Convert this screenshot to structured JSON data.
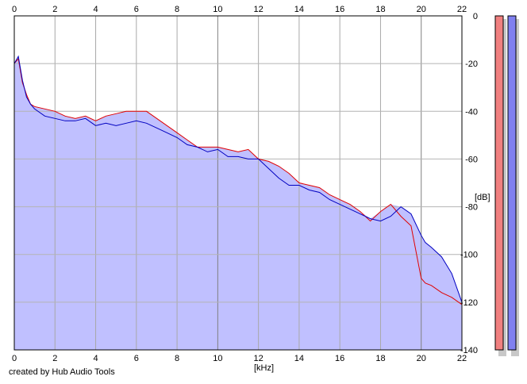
{
  "credit": "created by Hub Audio Tools",
  "chart_data": {
    "type": "area",
    "xlabel": "[kHz]",
    "ylabel": "[dB]",
    "xlim": [
      0,
      22
    ],
    "ylim": [
      -140,
      0
    ],
    "x_ticks": [
      0,
      2,
      4,
      6,
      8,
      10,
      12,
      14,
      16,
      18,
      20,
      22
    ],
    "y_ticks": [
      0,
      -20,
      -40,
      -60,
      -80,
      -100,
      -120,
      -140
    ],
    "grid": true,
    "fill_color": "#c0c0ff",
    "series": [
      {
        "channel": "left",
        "color": "#e00000",
        "x": [
          0,
          0.2,
          0.4,
          0.6,
          0.8,
          1,
          1.5,
          2,
          2.5,
          3,
          3.5,
          4,
          4.5,
          5,
          5.5,
          6,
          6.5,
          7,
          7.5,
          8,
          8.5,
          9,
          9.5,
          10,
          10.5,
          11,
          11.5,
          12,
          12.5,
          13,
          13.5,
          14,
          14.5,
          15,
          15.5,
          16,
          16.5,
          17,
          17.5,
          18,
          18.5,
          19,
          19.5,
          20,
          20.2,
          20.5,
          21,
          21.5,
          22
        ],
        "values": [
          -20,
          -18,
          -28,
          -33,
          -37,
          -38,
          -39,
          -40,
          -42,
          -43,
          -42,
          -44,
          -42,
          -41,
          -40,
          -40,
          -40,
          -43,
          -46,
          -49,
          -52,
          -55,
          -55,
          -55,
          -56,
          -57,
          -56,
          -60,
          -61,
          -63,
          -66,
          -70,
          -71,
          -72,
          -75,
          -77,
          -79,
          -82,
          -86,
          -82,
          -79,
          -84,
          -88,
          -110,
          -112,
          -113,
          -116,
          -118,
          -121
        ]
      },
      {
        "channel": "right",
        "color": "#0000c0",
        "x": [
          0,
          0.2,
          0.4,
          0.6,
          0.8,
          1,
          1.5,
          2,
          2.5,
          3,
          3.5,
          4,
          4.5,
          5,
          5.5,
          6,
          6.5,
          7,
          7.5,
          8,
          8.5,
          9,
          9.5,
          10,
          10.5,
          11,
          11.5,
          12,
          12.5,
          13,
          13.5,
          14,
          14.5,
          15,
          15.5,
          16,
          16.5,
          17,
          17.5,
          18,
          18.5,
          19,
          19.5,
          20,
          20.2,
          20.5,
          21,
          21.5,
          22
        ],
        "values": [
          -20,
          -17,
          -27,
          -34,
          -37,
          -39,
          -42,
          -43,
          -44,
          -44,
          -43,
          -46,
          -45,
          -46,
          -45,
          -44,
          -45,
          -47,
          -49,
          -51,
          -54,
          -55,
          -57,
          -56,
          -59,
          -59,
          -60,
          -60,
          -64,
          -68,
          -71,
          -71,
          -73,
          -74,
          -77,
          -79,
          -81,
          -83,
          -85,
          -86,
          -84,
          -80,
          -83,
          -92,
          -95,
          -97,
          -101,
          -108,
          -120
        ]
      }
    ],
    "level_meters": [
      {
        "channel": "left",
        "color": "#f08080",
        "level": 1.0
      },
      {
        "channel": "right",
        "color": "#8080f0",
        "level": 1.0
      }
    ]
  }
}
